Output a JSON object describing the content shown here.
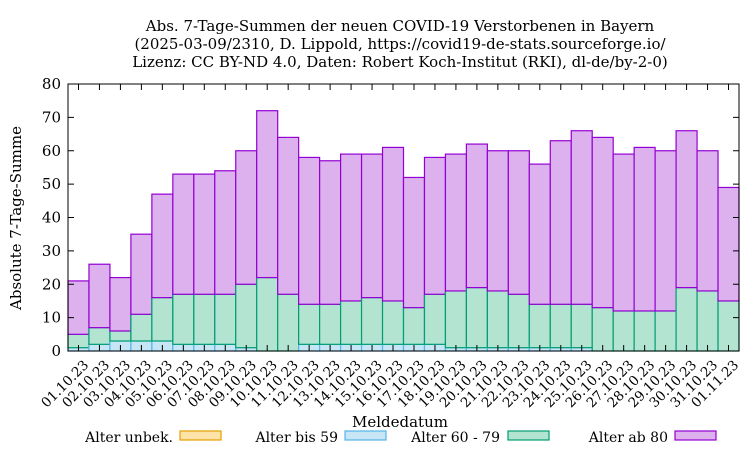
{
  "chart_data": {
    "type": "bar",
    "stacked": true,
    "title_lines": [
      "Abs. 7-Tage-Summen der neuen COVID-19 Verstorbenen in Bayern",
      "(2025-03-09/2310, D. Lippold, https://covid19-de-stats.sourceforge.io/",
      "Lizenz: CC BY-ND 4.0, Daten: Robert Koch-Institut (RKI), dl-de/by-2-0)"
    ],
    "xlabel": "Meldedatum",
    "ylabel": "Absolute 7-Tage-Summe",
    "ylim": [
      0,
      80
    ],
    "yticks": [
      0,
      10,
      20,
      30,
      40,
      50,
      60,
      70,
      80
    ],
    "grid": false,
    "legend_position": "bottom",
    "categories": [
      "01.10.23",
      "02.10.23",
      "03.10.23",
      "04.10.23",
      "05.10.23",
      "06.10.23",
      "07.10.23",
      "08.10.23",
      "09.10.23",
      "10.10.23",
      "11.10.23",
      "12.10.23",
      "13.10.23",
      "14.10.23",
      "15.10.23",
      "16.10.23",
      "17.10.23",
      "18.10.23",
      "19.10.23",
      "20.10.23",
      "21.10.23",
      "22.10.23",
      "23.10.23",
      "24.10.23",
      "25.10.23",
      "26.10.23",
      "27.10.23",
      "28.10.23",
      "29.10.23",
      "30.10.23",
      "31.10.23",
      "01.11.23"
    ],
    "series": [
      {
        "name": "Alter unbek.",
        "fill": "#fde3a7",
        "stroke": "#e69f00",
        "values": [
          0,
          0,
          0,
          0,
          0,
          0,
          0,
          0,
          0,
          0,
          0,
          0,
          0,
          0,
          0,
          0,
          0,
          0,
          0,
          0,
          0,
          0,
          0,
          0,
          0,
          0,
          0,
          0,
          0,
          0,
          0,
          0
        ]
      },
      {
        "name": "Alter bis 59",
        "fill": "#c6e6f5",
        "stroke": "#56b4e9",
        "values": [
          1,
          2,
          3,
          3,
          3,
          2,
          2,
          2,
          1,
          0,
          0,
          2,
          2,
          2,
          2,
          2,
          2,
          2,
          1,
          1,
          1,
          1,
          1,
          1,
          1,
          0,
          0,
          0,
          0,
          0,
          0,
          0
        ]
      },
      {
        "name": "Alter 60 - 79",
        "fill": "#b3e3d1",
        "stroke": "#009e73",
        "values": [
          4,
          5,
          3,
          8,
          13,
          15,
          15,
          15,
          19,
          22,
          17,
          12,
          12,
          13,
          14,
          13,
          11,
          15,
          17,
          18,
          17,
          16,
          13,
          13,
          13,
          13,
          12,
          12,
          12,
          19,
          18,
          15
        ]
      },
      {
        "name": "Alter ab 80",
        "fill": "#dcb1ee",
        "stroke": "#9400d3",
        "values": [
          16,
          19,
          16,
          24,
          31,
          36,
          36,
          37,
          40,
          50,
          47,
          44,
          43,
          44,
          43,
          46,
          39,
          41,
          41,
          43,
          42,
          43,
          42,
          49,
          52,
          51,
          47,
          49,
          48,
          47,
          42,
          34
        ]
      }
    ]
  }
}
